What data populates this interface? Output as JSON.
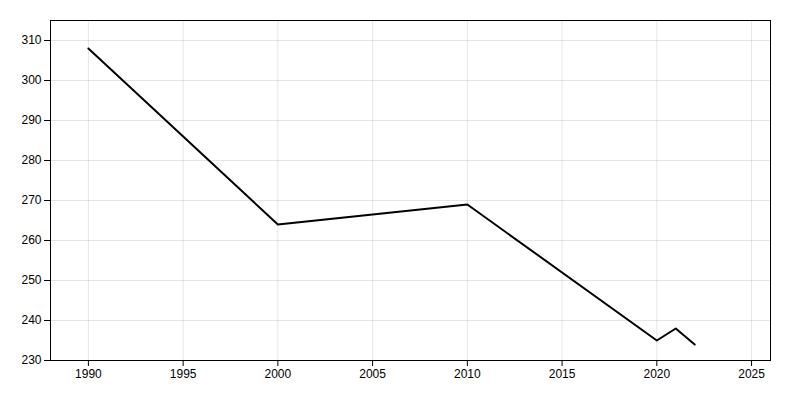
{
  "chart_data": {
    "type": "line",
    "x": [
      1990,
      2000,
      2010,
      2020,
      2021,
      2022
    ],
    "values": [
      308,
      264,
      269,
      235,
      238,
      234
    ],
    "xlim": [
      1988,
      2026
    ],
    "ylim": [
      230,
      315
    ],
    "xticks": [
      1990,
      1995,
      2000,
      2005,
      2010,
      2015,
      2020,
      2025
    ],
    "yticks": [
      230,
      240,
      250,
      260,
      270,
      280,
      290,
      300,
      310
    ],
    "grid": true
  }
}
